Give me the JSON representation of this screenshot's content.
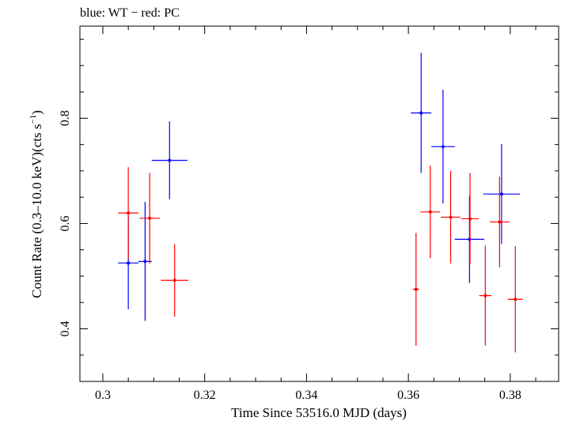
{
  "chart_data": {
    "type": "scatter",
    "title": "blue: WT − red: PC",
    "xlabel": "Time Since 53516.0 MJD (days)",
    "ylabel_main": "Count Rate (0.3–10.0 keV)(cts s",
    "ylabel_sup": "−1",
    "ylabel_end": ")",
    "xlim": [
      0.2955,
      0.3895
    ],
    "ylim": [
      0.3,
      0.975
    ],
    "x_ticks": [
      {
        "value": 0.3,
        "label": "0.3"
      },
      {
        "value": 0.32,
        "label": "0.32"
      },
      {
        "value": 0.34,
        "label": "0.34"
      },
      {
        "value": 0.36,
        "label": "0.36"
      },
      {
        "value": 0.38,
        "label": "0.38"
      }
    ],
    "y_ticks": [
      {
        "value": 0.4,
        "label": "0.4"
      },
      {
        "value": 0.6,
        "label": "0.6"
      },
      {
        "value": 0.8,
        "label": "0.8"
      }
    ],
    "grid": false,
    "series": [
      {
        "name": "WT",
        "color": "#0000ff",
        "points": [
          {
            "x": 0.305,
            "y": 0.525,
            "xerr": 0.002,
            "yerr": 0.088
          },
          {
            "x": 0.3083,
            "y": 0.528,
            "xerr": 0.0013,
            "yerr": 0.113
          },
          {
            "x": 0.3131,
            "y": 0.72,
            "xerr": 0.0035,
            "yerr": 0.074
          },
          {
            "x": 0.3625,
            "y": 0.81,
            "xerr": 0.002,
            "yerr": 0.114
          },
          {
            "x": 0.3668,
            "y": 0.746,
            "xerr": 0.0023,
            "yerr": 0.108
          },
          {
            "x": 0.372,
            "y": 0.57,
            "xerr": 0.0029,
            "yerr": 0.083
          },
          {
            "x": 0.3783,
            "y": 0.656,
            "xerr": 0.0036,
            "yerr": 0.095
          }
        ]
      },
      {
        "name": "PC",
        "color": "#ff0000",
        "points": [
          {
            "x": 0.305,
            "y": 0.62,
            "xerr": 0.002,
            "yerr": 0.087
          },
          {
            "x": 0.3092,
            "y": 0.61,
            "xerr": 0.002,
            "yerr": 0.086
          },
          {
            "x": 0.3141,
            "y": 0.492,
            "xerr": 0.0027,
            "yerr": 0.069
          },
          {
            "x": 0.3615,
            "y": 0.475,
            "xerr": 0.0006,
            "yerr": 0.107
          },
          {
            "x": 0.3643,
            "y": 0.622,
            "xerr": 0.0019,
            "yerr": 0.088
          },
          {
            "x": 0.3683,
            "y": 0.612,
            "xerr": 0.0019,
            "yerr": 0.088
          },
          {
            "x": 0.3721,
            "y": 0.609,
            "xerr": 0.0017,
            "yerr": 0.087
          },
          {
            "x": 0.3751,
            "y": 0.463,
            "xerr": 0.0012,
            "yerr": 0.095
          },
          {
            "x": 0.3779,
            "y": 0.603,
            "xerr": 0.0019,
            "yerr": 0.086
          },
          {
            "x": 0.381,
            "y": 0.456,
            "xerr": 0.0015,
            "yerr": 0.101
          }
        ]
      }
    ]
  }
}
